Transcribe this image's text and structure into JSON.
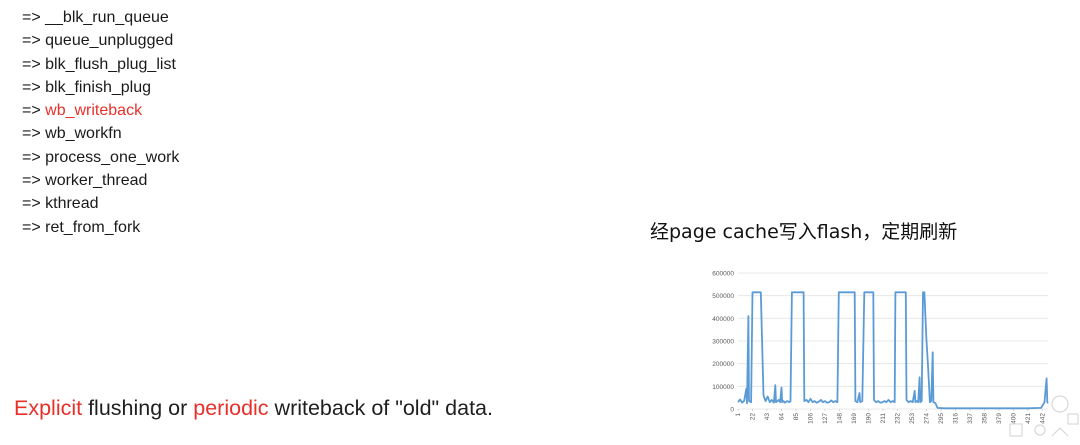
{
  "call_trace": [
    {
      "text": "=> __blk_run_queue",
      "highlight": false
    },
    {
      "text": "=> queue_unplugged",
      "highlight": false
    },
    {
      "text": "=> blk_flush_plug_list",
      "highlight": false
    },
    {
      "text": "=> blk_finish_plug",
      "highlight": false
    },
    {
      "prefix": "=> ",
      "text": "wb_writeback",
      "highlight": true
    },
    {
      "text": "=> wb_workfn",
      "highlight": false
    },
    {
      "text": "=> process_one_work",
      "highlight": false
    },
    {
      "text": "=> worker_thread",
      "highlight": false
    },
    {
      "text": "=> kthread",
      "highlight": false
    },
    {
      "text": "=> ret_from_fork",
      "highlight": false
    }
  ],
  "chart_title": "经page cache写入flash，定期刷新",
  "caption": {
    "word1": "Explicit",
    "mid1": " flushing or ",
    "word2": "periodic",
    "mid2": " writeback of \"old\" data."
  },
  "colors": {
    "highlight": "#e8302a",
    "series": "#5b9bd5",
    "grid": "#e3e3e3"
  },
  "chart_data": {
    "type": "line",
    "title": "",
    "xlabel": "",
    "ylabel": "",
    "ylim": [
      0,
      600000
    ],
    "y_ticks": [
      0,
      100000,
      200000,
      300000,
      400000,
      500000,
      600000
    ],
    "x_ticks": [
      "1",
      "22",
      "43",
      "64",
      "85",
      "106",
      "127",
      "148",
      "169",
      "190",
      "211",
      "232",
      "253",
      "274",
      "295",
      "316",
      "337",
      "358",
      "379",
      "400",
      "421",
      "442"
    ],
    "grid": true,
    "series": [
      {
        "name": "",
        "points": [
          [
            1,
            30000
          ],
          [
            4,
            42000
          ],
          [
            7,
            28000
          ],
          [
            10,
            36000
          ],
          [
            13,
            90000
          ],
          [
            14,
            25000
          ],
          [
            16,
            410000
          ],
          [
            17,
            35000
          ],
          [
            20,
            30000
          ],
          [
            22,
            515000
          ],
          [
            34,
            515000
          ],
          [
            36,
            280000
          ],
          [
            38,
            60000
          ],
          [
            41,
            35000
          ],
          [
            44,
            55000
          ],
          [
            47,
            30000
          ],
          [
            50,
            40000
          ],
          [
            53,
            28000
          ],
          [
            55,
            105000
          ],
          [
            56,
            30000
          ],
          [
            58,
            35000
          ],
          [
            60,
            40000
          ],
          [
            62,
            30000
          ],
          [
            64,
            95000
          ],
          [
            65,
            30000
          ],
          [
            67,
            35000
          ],
          [
            69,
            28000
          ],
          [
            71,
            32000
          ],
          [
            73,
            35000
          ],
          [
            75,
            30000
          ],
          [
            77,
            34000
          ],
          [
            79,
            515000
          ],
          [
            96,
            515000
          ],
          [
            97,
            35000
          ],
          [
            100,
            40000
          ],
          [
            103,
            30000
          ],
          [
            106,
            45000
          ],
          [
            109,
            30000
          ],
          [
            112,
            35000
          ],
          [
            115,
            28000
          ],
          [
            118,
            32000
          ],
          [
            121,
            40000
          ],
          [
            124,
            30000
          ],
          [
            127,
            35000
          ],
          [
            130,
            28000
          ],
          [
            133,
            30000
          ],
          [
            136,
            38000
          ],
          [
            139,
            30000
          ],
          [
            142,
            35000
          ],
          [
            145,
            30000
          ],
          [
            147,
            515000
          ],
          [
            170,
            515000
          ],
          [
            171,
            35000
          ],
          [
            174,
            30000
          ],
          [
            177,
            70000
          ],
          [
            178,
            30000
          ],
          [
            181,
            35000
          ],
          [
            184,
            515000
          ],
          [
            197,
            515000
          ],
          [
            198,
            40000
          ],
          [
            201,
            30000
          ],
          [
            204,
            35000
          ],
          [
            207,
            28000
          ],
          [
            210,
            30000
          ],
          [
            213,
            35000
          ],
          [
            216,
            30000
          ],
          [
            219,
            40000
          ],
          [
            222,
            30000
          ],
          [
            225,
            35000
          ],
          [
            228,
            30000
          ],
          [
            229,
            515000
          ],
          [
            244,
            515000
          ],
          [
            245,
            40000
          ],
          [
            248,
            30000
          ],
          [
            251,
            35000
          ],
          [
            254,
            30000
          ],
          [
            257,
            80000
          ],
          [
            258,
            30000
          ],
          [
            260,
            35000
          ],
          [
            262,
            30000
          ],
          [
            264,
            140000
          ],
          [
            265,
            30000
          ],
          [
            267,
            35000
          ],
          [
            269,
            515000
          ],
          [
            271,
            515000
          ],
          [
            272,
            440000
          ],
          [
            274,
            300000
          ],
          [
            276,
            200000
          ],
          [
            278,
            90000
          ],
          [
            279,
            30000
          ],
          [
            281,
            35000
          ],
          [
            283,
            250000
          ],
          [
            284,
            30000
          ],
          [
            287,
            25000
          ],
          [
            290,
            5000
          ],
          [
            300,
            3000
          ],
          [
            320,
            3000
          ],
          [
            340,
            3000
          ],
          [
            360,
            3000
          ],
          [
            380,
            3000
          ],
          [
            400,
            3000
          ],
          [
            420,
            3000
          ],
          [
            440,
            5000
          ],
          [
            445,
            30000
          ],
          [
            448,
            135000
          ],
          [
            449,
            30000
          ],
          [
            450,
            25000
          ]
        ]
      }
    ]
  }
}
